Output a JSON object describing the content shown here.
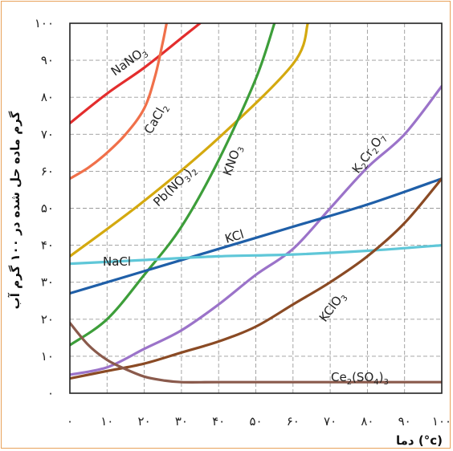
{
  "chart_data": {
    "type": "line",
    "xlabel": "دما (°c)",
    "ylabel": "گرم ماده حل شده در ۱۰۰ گرم آب",
    "xlim": [
      0,
      100
    ],
    "ylim": [
      0,
      100
    ],
    "x_tick_labels": [
      "۰",
      "۱۰",
      "۲۰",
      "۳۰",
      "۴۰",
      "۵۰",
      "۶۰",
      "۷۰",
      "۸۰",
      "۹۰",
      "۱۰۰"
    ],
    "y_tick_labels": [
      "۰",
      "۱۰",
      "۲۰",
      "۳۰",
      "۴۰",
      "۵۰",
      "۶۰",
      "۷۰",
      "۸۰",
      "۹۰",
      "۱۰۰"
    ],
    "grid": true,
    "series": [
      {
        "name": "NaNO3",
        "color": "#e32d2d",
        "x": [
          0,
          10,
          20,
          30,
          35
        ],
        "y": [
          73,
          81,
          88,
          96,
          100
        ]
      },
      {
        "name": "CaCl2",
        "color": "#f0704a",
        "x": [
          0,
          5,
          10,
          15,
          20,
          23,
          25,
          26
        ],
        "y": [
          58,
          61,
          65,
          70,
          77,
          86,
          95,
          100
        ]
      },
      {
        "name": "Pb(NO3)2",
        "color": "#d4a90f",
        "x": [
          0,
          20,
          40,
          60,
          64
        ],
        "y": [
          37,
          52,
          69,
          89,
          100
        ]
      },
      {
        "name": "KNO3",
        "color": "#3d9e3a",
        "x": [
          0,
          10,
          20,
          30,
          40,
          50,
          55
        ],
        "y": [
          13,
          20,
          32,
          45,
          63,
          85,
          100
        ]
      },
      {
        "name": "K2Cr2O7",
        "color": "#9b73c9",
        "x": [
          0,
          10,
          20,
          30,
          40,
          50,
          60,
          70,
          80,
          90,
          100
        ],
        "y": [
          5,
          7,
          12,
          17,
          24,
          32,
          39,
          50,
          61,
          70,
          83
        ]
      },
      {
        "name": "KCl",
        "color": "#1f5fa8",
        "x": [
          0,
          20,
          40,
          60,
          80,
          100
        ],
        "y": [
          27,
          33,
          39,
          45,
          51,
          58
        ]
      },
      {
        "name": "NaCl",
        "color": "#5fc7d8",
        "x": [
          0,
          20,
          40,
          60,
          80,
          100
        ],
        "y": [
          35,
          36,
          37,
          37.5,
          38.5,
          40
        ]
      },
      {
        "name": "KClO3",
        "color": "#8a4a24",
        "x": [
          0,
          10,
          20,
          30,
          40,
          50,
          60,
          70,
          80,
          90,
          100
        ],
        "y": [
          4,
          6,
          8,
          11,
          14,
          18,
          24,
          30,
          37,
          46,
          58
        ]
      },
      {
        "name": "Ce2(SO4)3",
        "color": "#8a5a4c",
        "x": [
          0,
          5,
          10,
          15,
          20,
          25,
          30,
          40,
          60,
          80,
          100
        ],
        "y": [
          19,
          13,
          9,
          6.5,
          4.5,
          3.5,
          3,
          3,
          3,
          3,
          3
        ]
      }
    ]
  }
}
